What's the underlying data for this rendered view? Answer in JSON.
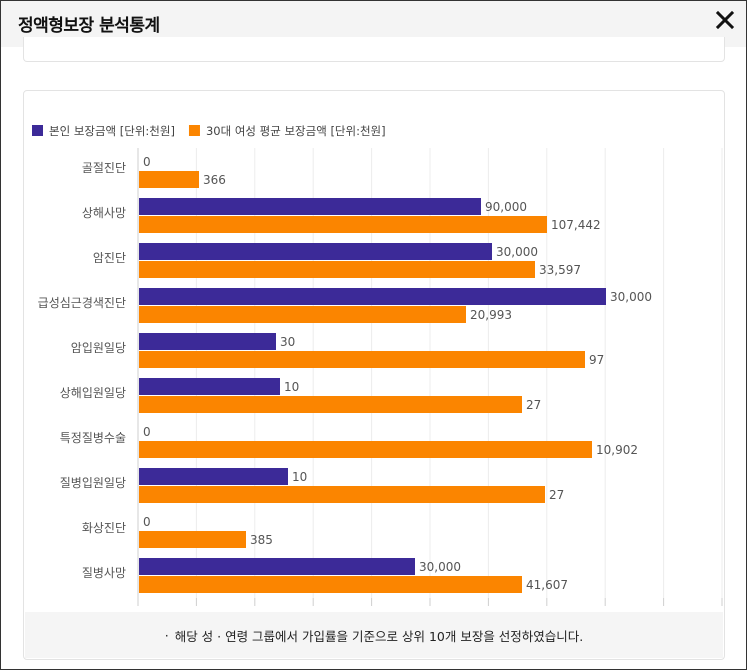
{
  "dialog": {
    "title": "정액형보장 분석통계"
  },
  "note": {
    "bullet": "·",
    "text": "해당 성 · 연령 그룹에서 가입률을 기준으로 상위 10개 보장을 선정하였습니다."
  },
  "chart_data": {
    "type": "bar",
    "orientation": "horizontal",
    "legend_position": "top-left",
    "grid": true,
    "categories": [
      "골절진단",
      "상해사망",
      "암진단",
      "급성심근경색진단",
      "암입원일당",
      "상해입원일당",
      "특정질병수술",
      "질병입원일당",
      "화상진단",
      "질병사망"
    ],
    "series": [
      {
        "name": "본인 보장금액 [단위:천원]",
        "color": "#3c2a98",
        "values": [
          0,
          90000,
          30000,
          30000,
          30,
          10,
          0,
          10,
          0,
          30000
        ],
        "labels": [
          "0",
          "90,000",
          "30,000",
          "30,000",
          "30",
          "10",
          "0",
          "10",
          "0",
          "30,000"
        ],
        "fill": [
          0,
          0.585,
          0.605,
          0.8,
          0.235,
          0.242,
          0,
          0.255,
          0,
          0.473
        ]
      },
      {
        "name": "30대 여성 평균 보장금액 [단위:천원]",
        "color": "#fb8500",
        "values": [
          366,
          107442,
          33597,
          20993,
          97,
          27,
          10902,
          27,
          385,
          41607
        ],
        "labels": [
          "366",
          "107,442",
          "33,597",
          "20,993",
          "97",
          "27",
          "10,902",
          "27",
          "385",
          "41,607"
        ],
        "fill": [
          0.103,
          0.698,
          0.678,
          0.56,
          0.763,
          0.656,
          0.775,
          0.695,
          0.184,
          0.656
        ]
      }
    ]
  }
}
